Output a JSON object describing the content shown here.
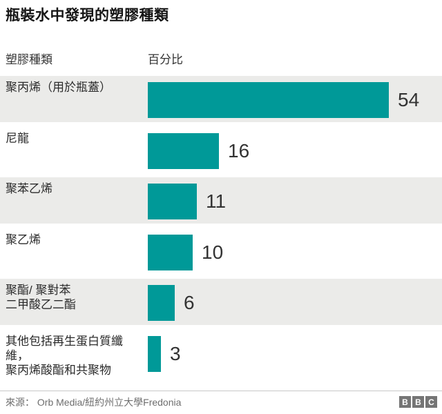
{
  "chart_data": {
    "type": "bar",
    "orientation": "horizontal",
    "title": "瓶裝水中發現的塑膠種類",
    "col_headers": [
      "塑膠種類",
      "百分比"
    ],
    "categories": [
      "聚丙烯（用於瓶蓋）",
      "尼龍",
      "聚苯乙烯",
      "聚乙烯",
      "聚酯/ 聚對苯二甲酸乙二酯",
      "其他包括再生蛋白質纖維，聚丙烯酸酯和共聚物"
    ],
    "values": [
      54,
      16,
      11,
      10,
      6,
      3
    ],
    "unit": "percent",
    "xlim": [
      0,
      54
    ],
    "data_labels_shown": true,
    "legend": "none",
    "grid": "off",
    "colors": {
      "bar": "#009998",
      "row_band": "#EBEBE9",
      "value_text": "#333333",
      "divider": "#C8C8C8",
      "logo_block": "#757575"
    },
    "rows": [
      {
        "label": "聚丙烯（用於瓶蓋）",
        "label2": "",
        "value": "54"
      },
      {
        "label": "尼龍",
        "label2": "",
        "value": "16"
      },
      {
        "label": "聚苯乙烯",
        "label2": "",
        "value": "11"
      },
      {
        "label": "聚乙烯",
        "label2": "",
        "value": "10"
      },
      {
        "label": "聚酯/ 聚對苯",
        "label2": "二甲酸乙二酯",
        "value": "6"
      },
      {
        "label": "其他包括再生蛋白質纖維，",
        "label2": "聚丙烯酸酯和共聚物",
        "value": "3"
      }
    ]
  },
  "footer": {
    "source": "來源： Orb Media/紐約州立大學Fredonia",
    "logo_letters": [
      "B",
      "B",
      "C"
    ]
  }
}
